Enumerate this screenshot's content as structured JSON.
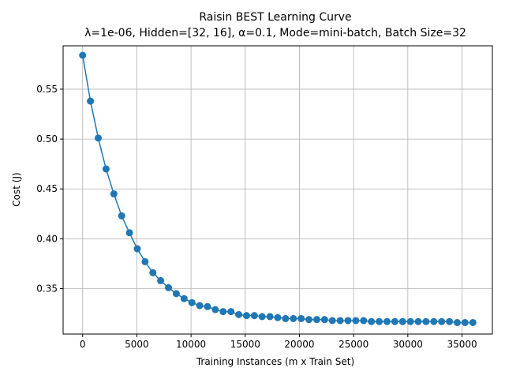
{
  "chart_data": {
    "type": "line",
    "title": "Raisin BEST Learning Curve",
    "subtitle": "λ=1e-06,  Hidden=[32, 16], α=0.1, Mode=mini-batch, Batch Size=32",
    "xlabel": "Training Instances (m x Train Set)",
    "ylabel": "Cost (J)",
    "xlim": [
      -1800,
      37800
    ],
    "ylim": [
      0.3045,
      0.5935
    ],
    "x_ticks": [
      0,
      5000,
      10000,
      15000,
      20000,
      25000,
      30000,
      35000
    ],
    "x_tick_labels": [
      "0",
      "5000",
      "10000",
      "15000",
      "20000",
      "25000",
      "30000",
      "35000"
    ],
    "y_ticks": [
      0.35,
      0.4,
      0.45,
      0.5,
      0.55
    ],
    "y_tick_labels": [
      "0.35",
      "0.40",
      "0.45",
      "0.50",
      "0.55"
    ],
    "grid": true,
    "color": "#1f77b4",
    "marker": "circle",
    "series": [
      {
        "x": [
          0,
          720,
          1440,
          2160,
          2880,
          3600,
          4320,
          5040,
          5760,
          6480,
          7200,
          7920,
          8640,
          9360,
          10080,
          10800,
          11520,
          12240,
          12960,
          13680,
          14400,
          15120,
          15840,
          16560,
          17280,
          18000,
          18720,
          19440,
          20160,
          20880,
          21600,
          22320,
          23040,
          23760,
          24480,
          25200,
          25920,
          26640,
          27360,
          28080,
          28800,
          29520,
          30240,
          30960,
          31680,
          32400,
          33120,
          33840,
          34560,
          35280,
          36000
        ],
        "values": [
          0.584,
          0.538,
          0.501,
          0.47,
          0.445,
          0.423,
          0.406,
          0.39,
          0.377,
          0.366,
          0.358,
          0.351,
          0.345,
          0.34,
          0.336,
          0.333,
          0.332,
          0.329,
          0.327,
          0.327,
          0.324,
          0.323,
          0.323,
          0.322,
          0.322,
          0.321,
          0.32,
          0.32,
          0.32,
          0.319,
          0.319,
          0.319,
          0.318,
          0.318,
          0.318,
          0.318,
          0.318,
          0.317,
          0.317,
          0.317,
          0.317,
          0.317,
          0.317,
          0.317,
          0.317,
          0.317,
          0.317,
          0.317,
          0.316,
          0.316,
          0.316
        ]
      }
    ]
  }
}
